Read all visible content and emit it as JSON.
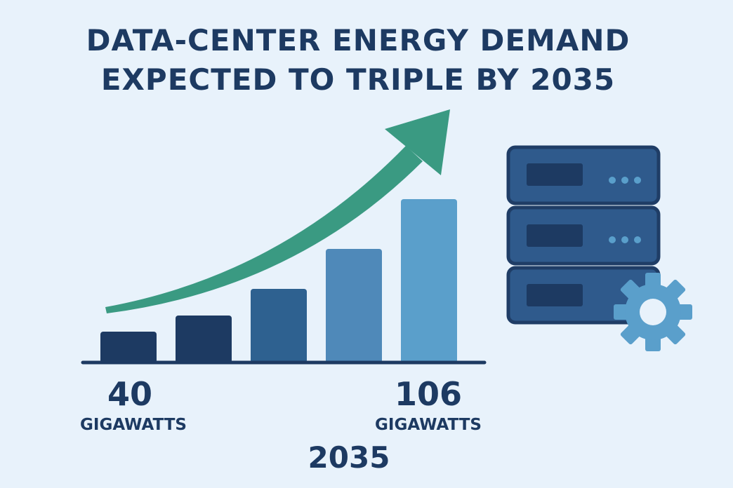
{
  "title_lines": [
    "DATA-CENTER ENERGY DEMAND",
    "EXPECTED TO TRIPLE BY 2035"
  ],
  "left": {
    "value": 40,
    "unit": "GIGAWATTS"
  },
  "right": {
    "value": 106,
    "unit": "GIGAWATTS"
  },
  "year": "2035"
}
